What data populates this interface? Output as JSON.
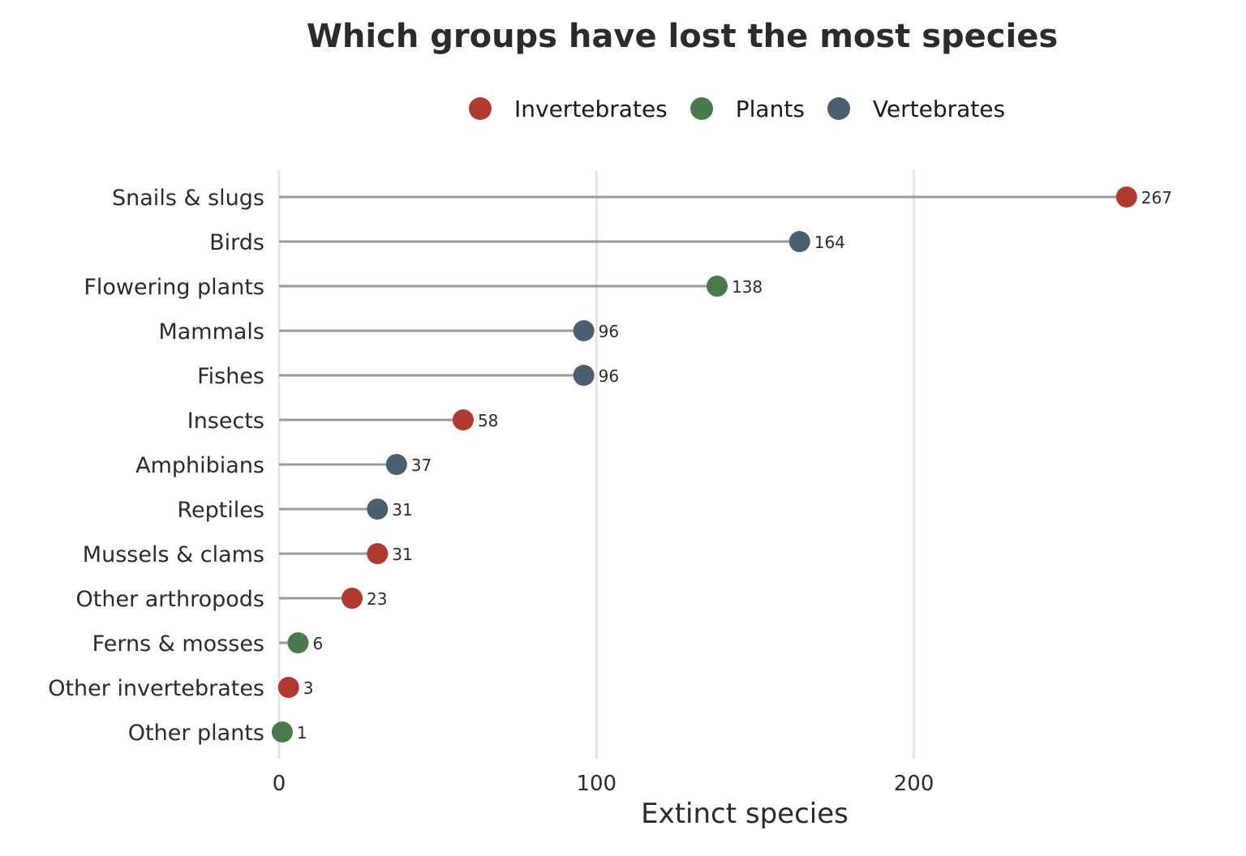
{
  "chart_data": {
    "type": "lollipop",
    "title": "Which groups have lost the most species",
    "xlabel": "Extinct species",
    "ylabel": "",
    "xlim": [
      0,
      280
    ],
    "x_ticks": [
      0,
      100,
      200
    ],
    "grid": "vertical major",
    "legend_position": "top",
    "legend": [
      {
        "name": "Invertebrates",
        "color": "#b03a2e"
      },
      {
        "name": "Plants",
        "color": "#4a7a4c"
      },
      {
        "name": "Vertebrates",
        "color": "#4a5f70"
      }
    ],
    "categories": [
      "Snails & slugs",
      "Birds",
      "Flowering plants",
      "Mammals",
      "Fishes",
      "Insects",
      "Amphibians",
      "Reptiles",
      "Mussels & clams",
      "Other arthropods",
      "Ferns & mosses",
      "Other invertebrates",
      "Other plants"
    ],
    "values": [
      267,
      164,
      138,
      96,
      96,
      58,
      37,
      31,
      31,
      23,
      6,
      3,
      1
    ],
    "groups": [
      "Invertebrates",
      "Vertebrates",
      "Plants",
      "Vertebrates",
      "Vertebrates",
      "Invertebrates",
      "Vertebrates",
      "Vertebrates",
      "Invertebrates",
      "Invertebrates",
      "Plants",
      "Invertebrates",
      "Plants"
    ],
    "stem_color": "#9a9a9a",
    "grid_color": "#e4e4e4"
  }
}
